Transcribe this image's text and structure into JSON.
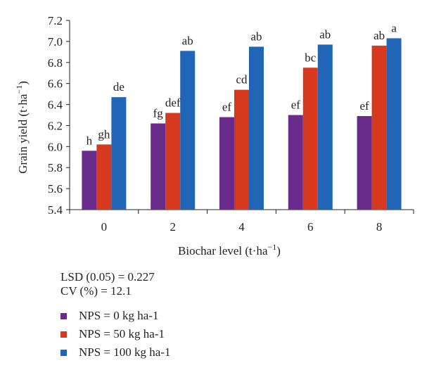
{
  "chart_data": {
    "type": "bar",
    "xlabel": "Biochar level (t·ha",
    "xlabel_sup": "−1",
    "xlabel_end": ")",
    "ylabel": "Grain yield (t·ha",
    "ylabel_sup": "−1",
    "ylabel_end": ")",
    "ylim": [
      5.4,
      7.2
    ],
    "yticks": [
      "5.4",
      "5.6",
      "5.8",
      "6.0",
      "6.2",
      "6.4",
      "6.6",
      "6.8",
      "7.0",
      "7.2"
    ],
    "categories": [
      "0",
      "2",
      "4",
      "6",
      "8"
    ],
    "series": [
      {
        "name": "NPS = 0 kg ha-1",
        "color": "#6a2c8c",
        "values": [
          5.96,
          6.22,
          6.28,
          6.3,
          6.29
        ],
        "labels": [
          "h",
          "fg",
          "ef",
          "ef",
          "ef"
        ]
      },
      {
        "name": "NPS = 50 kg ha-1",
        "color": "#d7391f",
        "values": [
          6.02,
          6.32,
          6.54,
          6.75,
          6.96
        ],
        "labels": [
          "gh",
          "def",
          "cd",
          "bc",
          "ab"
        ]
      },
      {
        "name": "NPS = 100 kg ha-1",
        "color": "#2166b6",
        "values": [
          6.47,
          6.91,
          6.95,
          6.97,
          7.03
        ],
        "labels": [
          "de",
          "ab",
          "ab",
          "ab",
          "a"
        ]
      }
    ],
    "grid": false,
    "legend_placement": "bottom-left"
  },
  "notes": {
    "lsd": "LSD (0.05) = 0.227",
    "cv": "CV (%) = 12.1"
  }
}
